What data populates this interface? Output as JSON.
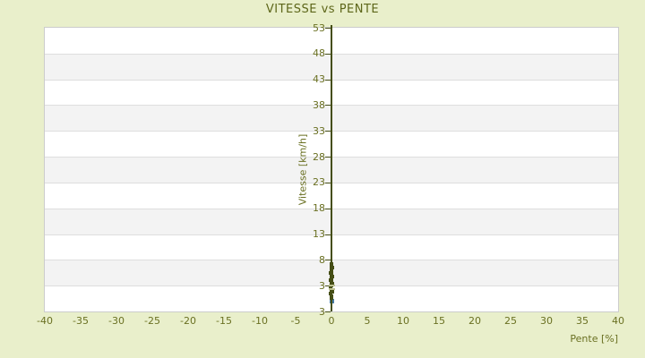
{
  "colors": {
    "background": "#e9efcb",
    "plot_bg": "#ffffff",
    "band_alt": "#f3f3f3",
    "plot_border": "#cccccc",
    "gridline": "#dedede",
    "tick_label_text": "#6a7022",
    "title_text": "#5d6619",
    "axis_line": "#454e16",
    "data_point": "#454e16",
    "highlight_dash": "#bcc08f",
    "selected_point": "#4579a2"
  },
  "chart_data": {
    "type": "scatter",
    "title": "VITESSE vs PENTE",
    "xlabel": "Pente [%]",
    "ylabel": "Vitesse [km/h]",
    "xlim": [
      -40,
      40
    ],
    "ylim": [
      -2,
      53
    ],
    "xticks": [
      -40,
      -35,
      -30,
      -25,
      -20,
      -15,
      -10,
      -5,
      0,
      5,
      10,
      15,
      20,
      25,
      30,
      35,
      40
    ],
    "yticks": [
      53,
      48,
      43,
      38,
      33,
      28,
      23,
      18,
      13,
      8,
      3
    ],
    "y_axis_bottom_label": "3",
    "grid_bands": "horizontal alternating stripes every 5 units",
    "legend": "none",
    "axis_line_x": 0,
    "points": [
      [
        0,
        0.6
      ],
      [
        0,
        1.0
      ],
      [
        -0.1,
        1.4
      ],
      [
        0.1,
        1.8
      ],
      [
        0,
        2.2
      ],
      [
        -0.1,
        2.6
      ],
      [
        0,
        3.0
      ],
      [
        0.1,
        3.3
      ],
      [
        0,
        3.7
      ],
      [
        -0.1,
        4.0
      ],
      [
        0,
        4.4
      ],
      [
        0.1,
        4.7
      ],
      [
        0,
        5.1
      ],
      [
        -0.1,
        5.4
      ],
      [
        0,
        5.8
      ],
      [
        0,
        6.2
      ],
      [
        0.1,
        6.5
      ],
      [
        0,
        6.9
      ],
      [
        0,
        7.2
      ]
    ],
    "highlight_dashes_y": [
      3.05,
      2.35
    ],
    "selected_point": {
      "x": 0,
      "y": 0
    }
  }
}
